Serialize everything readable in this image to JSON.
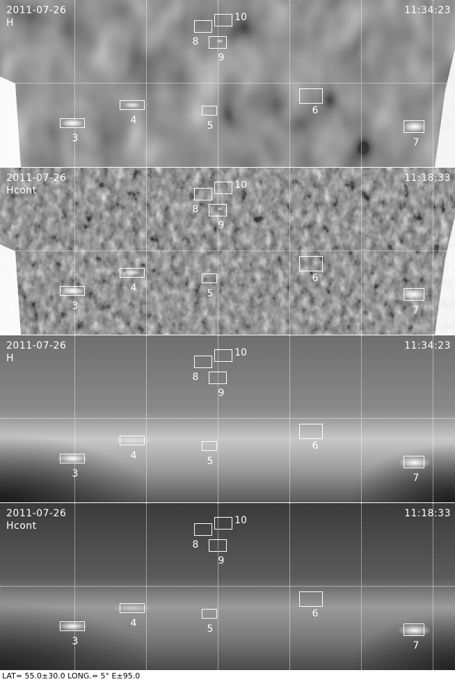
{
  "panels": [
    {
      "date": "2011-07-26",
      "channel": "H",
      "time": "11:34:23",
      "style": "diff"
    },
    {
      "date": "2011-07-26",
      "channel": "Hcont",
      "time": "11:18:33",
      "style": "noise"
    },
    {
      "date": "2011-07-26",
      "channel": "H",
      "time": "11:34:23",
      "style": "smooth"
    },
    {
      "date": "2011-07-26",
      "channel": "Hcont",
      "time": "11:18:33",
      "style": "smooth2"
    }
  ],
  "regions": [
    {
      "id": "3",
      "label": "3"
    },
    {
      "id": "4",
      "label": "4"
    },
    {
      "id": "5",
      "label": "5"
    },
    {
      "id": "6",
      "label": "6"
    },
    {
      "id": "7",
      "label": "7"
    },
    {
      "id": "8",
      "label": "8"
    },
    {
      "id": "9",
      "label": "9"
    },
    {
      "id": "10",
      "label": "10"
    }
  ],
  "footer": {
    "text": "LAT= 55.0±30.0 LONG.=   5° E±95.0"
  },
  "colors": {
    "label": "#ffffff",
    "footer": "#000000",
    "background": "#ffffff"
  }
}
